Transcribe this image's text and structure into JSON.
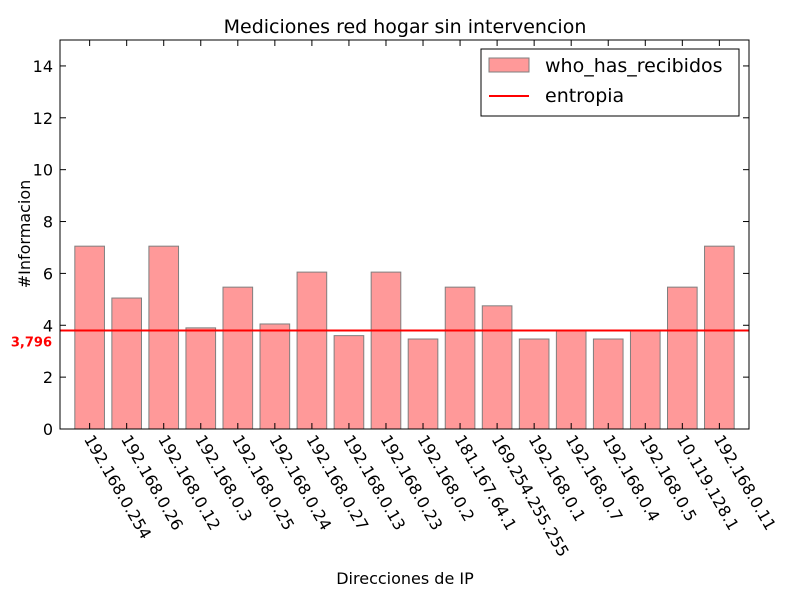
{
  "chart_data": {
    "type": "bar",
    "title": "Mediciones red hogar sin intervencion",
    "xlabel": "Direcciones de IP",
    "ylabel": "#Informacion",
    "ylim": [
      0,
      15
    ],
    "yticks": [
      0,
      2,
      4,
      6,
      8,
      10,
      12,
      14
    ],
    "grid": false,
    "legend_position": "top-right",
    "categories": [
      "192.168.0.254",
      "192.168.0.26",
      "192.168.0.12",
      "192.168.0.3",
      "192.168.0.25",
      "192.168.0.24",
      "192.168.0.27",
      "192.168.0.13",
      "192.168.0.23",
      "192.168.0.2",
      "181.167.64.1",
      "169.254.255.255",
      "192.168.0.1",
      "192.168.0.7",
      "192.168.0.4",
      "192.168.0.5",
      "10.119.128.1",
      "192.168.0.11"
    ],
    "series": [
      {
        "name": "who_has_recibidos",
        "values": [
          7.05,
          5.05,
          7.05,
          3.9,
          5.47,
          4.05,
          6.05,
          3.6,
          6.05,
          3.47,
          5.47,
          4.75,
          3.47,
          3.78,
          3.47,
          3.78,
          5.47,
          7.05
        ],
        "color": "#ff9999",
        "edge_color": "#7f7f7f"
      }
    ],
    "reference_line": {
      "name": "entropia",
      "value": 3.796,
      "label": "3,796",
      "color": "#ff0000"
    }
  }
}
